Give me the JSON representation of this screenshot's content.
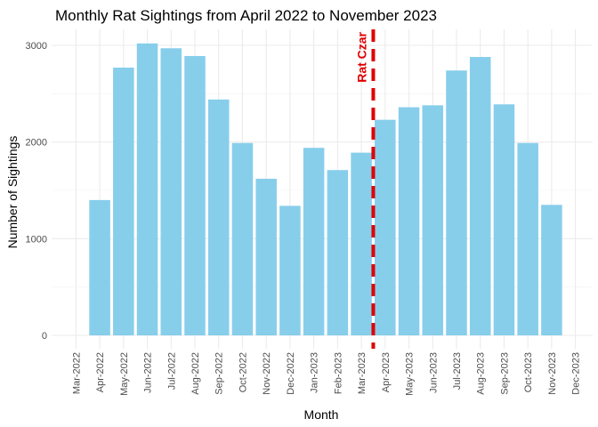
{
  "chart_data": {
    "type": "bar",
    "title": "Monthly Rat Sightings from April 2022 to November 2023",
    "xlabel": "Month",
    "ylabel": "Number of Sightings",
    "x_ticks": [
      "Mar-2022",
      "Apr-2022",
      "May-2022",
      "Jun-2022",
      "Jul-2022",
      "Aug-2022",
      "Sep-2022",
      "Oct-2022",
      "Nov-2022",
      "Dec-2022",
      "Jan-2023",
      "Feb-2023",
      "Mar-2023",
      "Apr-2023",
      "May-2023",
      "Jun-2023",
      "Jul-2023",
      "Aug-2023",
      "Sep-2023",
      "Oct-2023",
      "Nov-2023",
      "Dec-2023"
    ],
    "categories": [
      "Apr-2022",
      "May-2022",
      "Jun-2022",
      "Jul-2022",
      "Aug-2022",
      "Sep-2022",
      "Oct-2022",
      "Nov-2022",
      "Dec-2022",
      "Jan-2023",
      "Feb-2023",
      "Mar-2023",
      "Apr-2023",
      "May-2023",
      "Jun-2023",
      "Jul-2023",
      "Aug-2023",
      "Sep-2023",
      "Oct-2023",
      "Nov-2023"
    ],
    "values": [
      1400,
      2770,
      3020,
      2970,
      2890,
      2440,
      1990,
      1620,
      1340,
      1940,
      1710,
      1890,
      2230,
      2360,
      2380,
      2740,
      2880,
      2390,
      1990,
      1350
    ],
    "y_ticks": [
      0,
      1000,
      2000,
      3000
    ],
    "ylim": [
      0,
      3150
    ],
    "bar_color": "#87CEEB",
    "grid": true,
    "annotation": {
      "label": "Rat Czar",
      "position": "Apr-2023",
      "line_style": "dashed",
      "color": "#E00000"
    }
  }
}
